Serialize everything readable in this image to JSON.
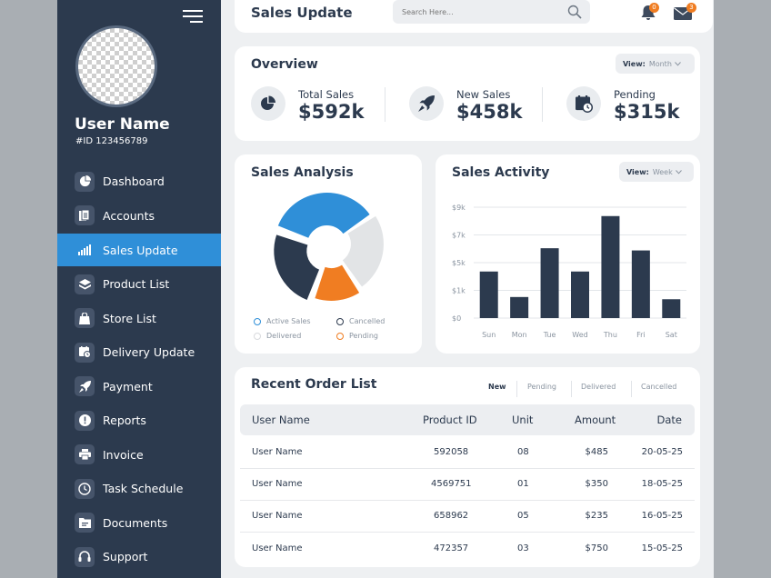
{
  "sidebar": {
    "user_name": "User Name",
    "user_id": "#ID 123456789",
    "items": [
      {
        "label": "Dashboard",
        "icon": "pie-chart-icon"
      },
      {
        "label": "Accounts",
        "icon": "document-icon"
      },
      {
        "label": "Sales Update",
        "icon": "bar-chart-icon",
        "active": true
      },
      {
        "label": "Product List",
        "icon": "layers-icon"
      },
      {
        "label": "Store List",
        "icon": "shopping-bag-icon"
      },
      {
        "label": "Delivery Update",
        "icon": "calendar-clock-icon"
      },
      {
        "label": "Payment",
        "icon": "rocket-icon"
      },
      {
        "label": "Reports",
        "icon": "alert-icon"
      },
      {
        "label": "Invoice",
        "icon": "printer-icon"
      },
      {
        "label": "Task Schedule",
        "icon": "clock-icon"
      },
      {
        "label": "Documents",
        "icon": "folder-icon"
      },
      {
        "label": "Support",
        "icon": "headset-icon"
      }
    ]
  },
  "header": {
    "title": "Sales Update",
    "search_placeholder": "Search Here...",
    "notifications_count": "0",
    "messages_count": "3"
  },
  "overview": {
    "title": "Overview",
    "view_label": "View:",
    "view_value": "Month",
    "stats": [
      {
        "label": "Total Sales",
        "value": "$592k",
        "icon": "pie-chart-icon"
      },
      {
        "label": "New Sales",
        "value": "$458k",
        "icon": "rocket-icon"
      },
      {
        "label": "Pending",
        "value": "$315k",
        "icon": "calendar-clock-icon"
      }
    ]
  },
  "analysis": {
    "title": "Sales Analysis",
    "legend": [
      {
        "label": "Active Sales",
        "color": "#2f8fd8"
      },
      {
        "label": "Cancelled",
        "color": "#2c3a4e"
      },
      {
        "label": "Delivered",
        "color": "#e2e4e6"
      },
      {
        "label": "Pending",
        "color": "#f07d22"
      }
    ]
  },
  "activity": {
    "title": "Sales Activity",
    "view_label": "View:",
    "view_value": "Week"
  },
  "chart_data": [
    {
      "type": "pie",
      "categories": [
        "Active Sales",
        "Delivered",
        "Pending",
        "Cancelled"
      ],
      "values": [
        35,
        25,
        15,
        25
      ],
      "colors": [
        "#2f8fd8",
        "#e2e4e6",
        "#f07d22",
        "#2c3a4e"
      ]
    },
    {
      "type": "bar",
      "categories": [
        "Sun",
        "Mon",
        "Tue",
        "Wed",
        "Thu",
        "Fri",
        "Sat"
      ],
      "values": [
        4.2,
        1.9,
        6.3,
        4.2,
        9.2,
        6.1,
        1.7
      ],
      "ytick_labels": [
        "$0",
        "$1k",
        "$5k",
        "$7k",
        "$9k"
      ],
      "ylim": [
        0,
        10
      ],
      "grid": true,
      "color": "#2c3a4e"
    }
  ],
  "orders": {
    "title": "Recent Order List",
    "tabs": [
      "New",
      "Pending",
      "Delivered",
      "Cancelled"
    ],
    "columns": [
      "User Name",
      "Product ID",
      "Unit",
      "Amount",
      "Date"
    ],
    "rows": [
      [
        "User Name",
        "592058",
        "08",
        "$485",
        "20-05-25"
      ],
      [
        "User Name",
        "4569751",
        "01",
        "$350",
        "18-05-25"
      ],
      [
        "User Name",
        "658962",
        "05",
        "$235",
        "16-05-25"
      ],
      [
        "User Name",
        "472357",
        "03",
        "$750",
        "15-05-25"
      ]
    ]
  }
}
